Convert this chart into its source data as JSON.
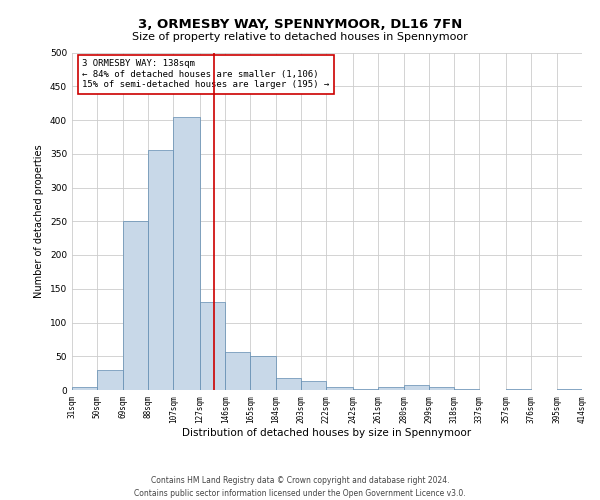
{
  "title": "3, ORMESBY WAY, SPENNYMOOR, DL16 7FN",
  "subtitle": "Size of property relative to detached houses in Spennymoor",
  "xlabel": "Distribution of detached houses by size in Spennymoor",
  "ylabel": "Number of detached properties",
  "footer_line1": "Contains HM Land Registry data © Crown copyright and database right 2024.",
  "footer_line2": "Contains public sector information licensed under the Open Government Licence v3.0.",
  "annotation_line1": "3 ORMESBY WAY: 138sqm",
  "annotation_line2": "← 84% of detached houses are smaller (1,106)",
  "annotation_line3": "15% of semi-detached houses are larger (195) →",
  "bar_left_edges": [
    31,
    50,
    69,
    88,
    107,
    127,
    146,
    165,
    184,
    203,
    222,
    242,
    261,
    280,
    299,
    318,
    337,
    357,
    376,
    395
  ],
  "bar_widths": [
    19,
    19,
    19,
    19,
    20,
    19,
    19,
    19,
    19,
    19,
    20,
    19,
    19,
    19,
    19,
    19,
    20,
    19,
    19,
    19
  ],
  "bar_heights": [
    5,
    30,
    250,
    355,
    405,
    130,
    57,
    50,
    18,
    13,
    5,
    2,
    5,
    7,
    5,
    2,
    0,
    2,
    0,
    2
  ],
  "tick_labels": [
    "31sqm",
    "50sqm",
    "69sqm",
    "88sqm",
    "107sqm",
    "127sqm",
    "146sqm",
    "165sqm",
    "184sqm",
    "203sqm",
    "222sqm",
    "242sqm",
    "261sqm",
    "280sqm",
    "299sqm",
    "318sqm",
    "337sqm",
    "357sqm",
    "376sqm",
    "395sqm",
    "414sqm"
  ],
  "yticks": [
    0,
    50,
    100,
    150,
    200,
    250,
    300,
    350,
    400,
    450,
    500
  ],
  "ylim": [
    0,
    500
  ],
  "xlim": [
    31,
    414
  ],
  "bar_color": "#c8d8e8",
  "bar_edge_color": "#5f8ab0",
  "vline_color": "#cc0000",
  "vline_x": 138,
  "grid_color": "#cccccc",
  "background_color": "#ffffff",
  "annotation_box_color": "#cc0000",
  "title_fontsize": 9.5,
  "subtitle_fontsize": 8,
  "xlabel_fontsize": 7.5,
  "ylabel_fontsize": 7,
  "tick_fontsize": 5.5,
  "annotation_fontsize": 6.5,
  "footer_fontsize": 5.5,
  "ytick_fontsize": 6.5
}
